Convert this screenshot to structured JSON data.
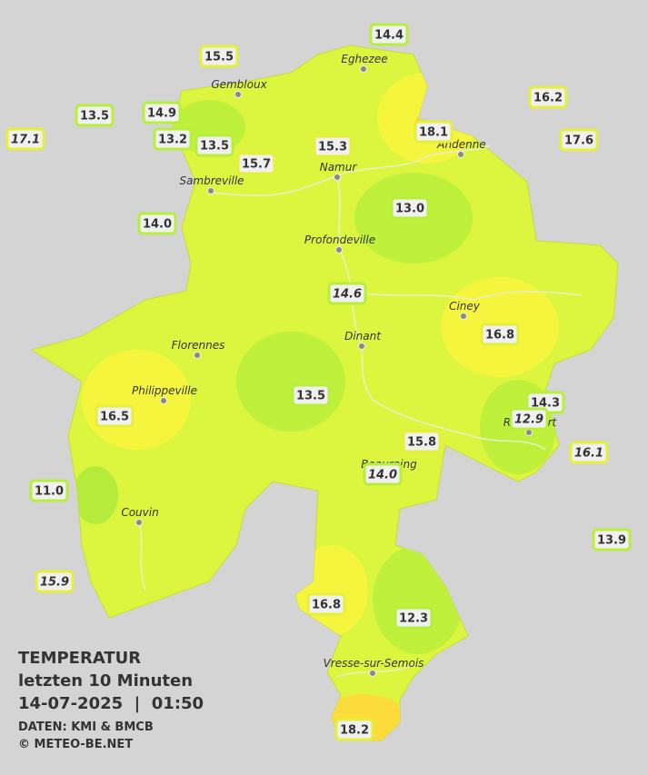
{
  "stations": [
    {
      "value": "14.4"
    },
    {
      "value": "15.5"
    },
    {
      "value": "13.5"
    },
    {
      "value": "14.9"
    },
    {
      "value": "17.1",
      "italic": true
    },
    {
      "value": "13.2"
    },
    {
      "value": "13.5"
    },
    {
      "value": "15.7"
    },
    {
      "value": "15.3"
    },
    {
      "value": "18.1"
    },
    {
      "value": "16.2"
    },
    {
      "value": "17.6"
    },
    {
      "value": "14.0"
    },
    {
      "value": "13.0"
    },
    {
      "value": "14.6",
      "italic": true
    },
    {
      "value": "16.8"
    },
    {
      "value": "16.5"
    },
    {
      "value": "13.5"
    },
    {
      "value": "14.3"
    },
    {
      "value": "12.9",
      "italic": true
    },
    {
      "value": "15.8"
    },
    {
      "value": "14.0",
      "italic": true
    },
    {
      "value": "16.1",
      "italic": true
    },
    {
      "value": "11.0"
    },
    {
      "value": "13.9"
    },
    {
      "value": "15.9",
      "italic": true
    },
    {
      "value": "16.8"
    },
    {
      "value": "12.3"
    },
    {
      "value": "18.2"
    }
  ],
  "cities": [
    "Eghezee",
    "Gembloux",
    "Andenne",
    "Namur",
    "Sambreville",
    "Profondeville",
    "Ciney",
    "Dinant",
    "Florennes",
    "Philippeville",
    "Rochefort",
    "Beauraing",
    "Couvin",
    "Vresse-sur-Semois"
  ],
  "legend": {
    "title": "TEMPERATUR",
    "period": "letzten 10 Minuten",
    "datetime": "14-07-2025  |  01:50",
    "source": "DATEN: KMI & BMCB",
    "copyright": "© METEO-BE.NET"
  }
}
